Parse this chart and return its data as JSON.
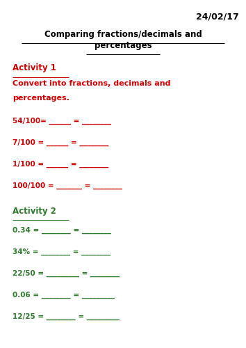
{
  "date": "24/02/17",
  "title_line1": "Comparing fractions/decimals and",
  "title_line2": "percentages",
  "activity1_header": "Activity 1",
  "activity1_subtext_line1": "Convert into fractions, decimals and",
  "activity1_subtext_line2": "percentages.",
  "activity1_items": [
    "54/100= ______ = ________",
    "7/100 = ______ = ________",
    "1/100 = ______ = ________",
    "100/100 = _______ = ________"
  ],
  "activity2_header": "Activity 2",
  "activity2_items": [
    "0.34 = ________ = ________",
    "34% = ________ = ________",
    "22/50 = _________ = ________",
    "0.06 = ________ = _________",
    "12/25 = ________ = _________"
  ],
  "color_date": "#000000",
  "color_title": "#000000",
  "color_activity1": "#cc0000",
  "color_activity2": "#2d7a2d",
  "bg_color": "#ffffff",
  "font_size_date": 9,
  "font_size_title": 8.5,
  "font_size_activity_header": 8.5,
  "font_size_activity_sub": 8,
  "font_size_items": 7.5
}
